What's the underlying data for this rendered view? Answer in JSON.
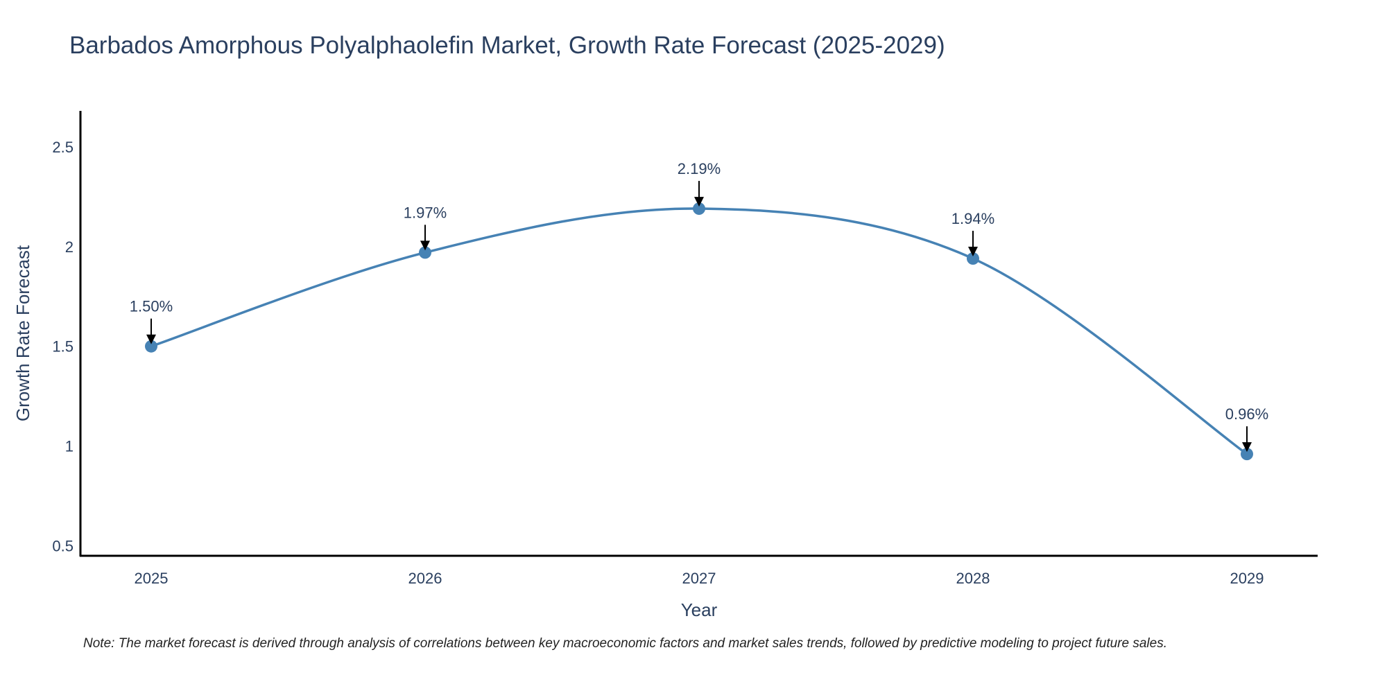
{
  "chart_data": {
    "type": "line",
    "title": "Barbados Amorphous Polyalphaolefin Market, Growth Rate Forecast (2025-2029)",
    "xlabel": "Year",
    "ylabel": "Growth Rate Forecast",
    "categories": [
      "2025",
      "2026",
      "2027",
      "2028",
      "2029"
    ],
    "series": [
      {
        "name": "Growth Rate Forecast",
        "values": [
          1.5,
          1.97,
          2.19,
          1.94,
          0.96
        ]
      }
    ],
    "data_labels": [
      "1.50%",
      "1.97%",
      "2.19%",
      "1.94%",
      "0.96%"
    ],
    "ylim": [
      0.45,
      2.68
    ],
    "yticks": [
      0.5,
      1,
      1.5,
      2,
      2.5
    ],
    "ytick_labels": [
      "0.5",
      "1",
      "1.5",
      "2",
      "2.5"
    ],
    "line_shape": "spline",
    "line_color": "#4682b4",
    "marker_color": "#4682b4",
    "grid": false
  },
  "note": "Note: The market forecast is derived through analysis of correlations between key macroeconomic factors and market sales trends, followed by predictive modeling to project future sales."
}
